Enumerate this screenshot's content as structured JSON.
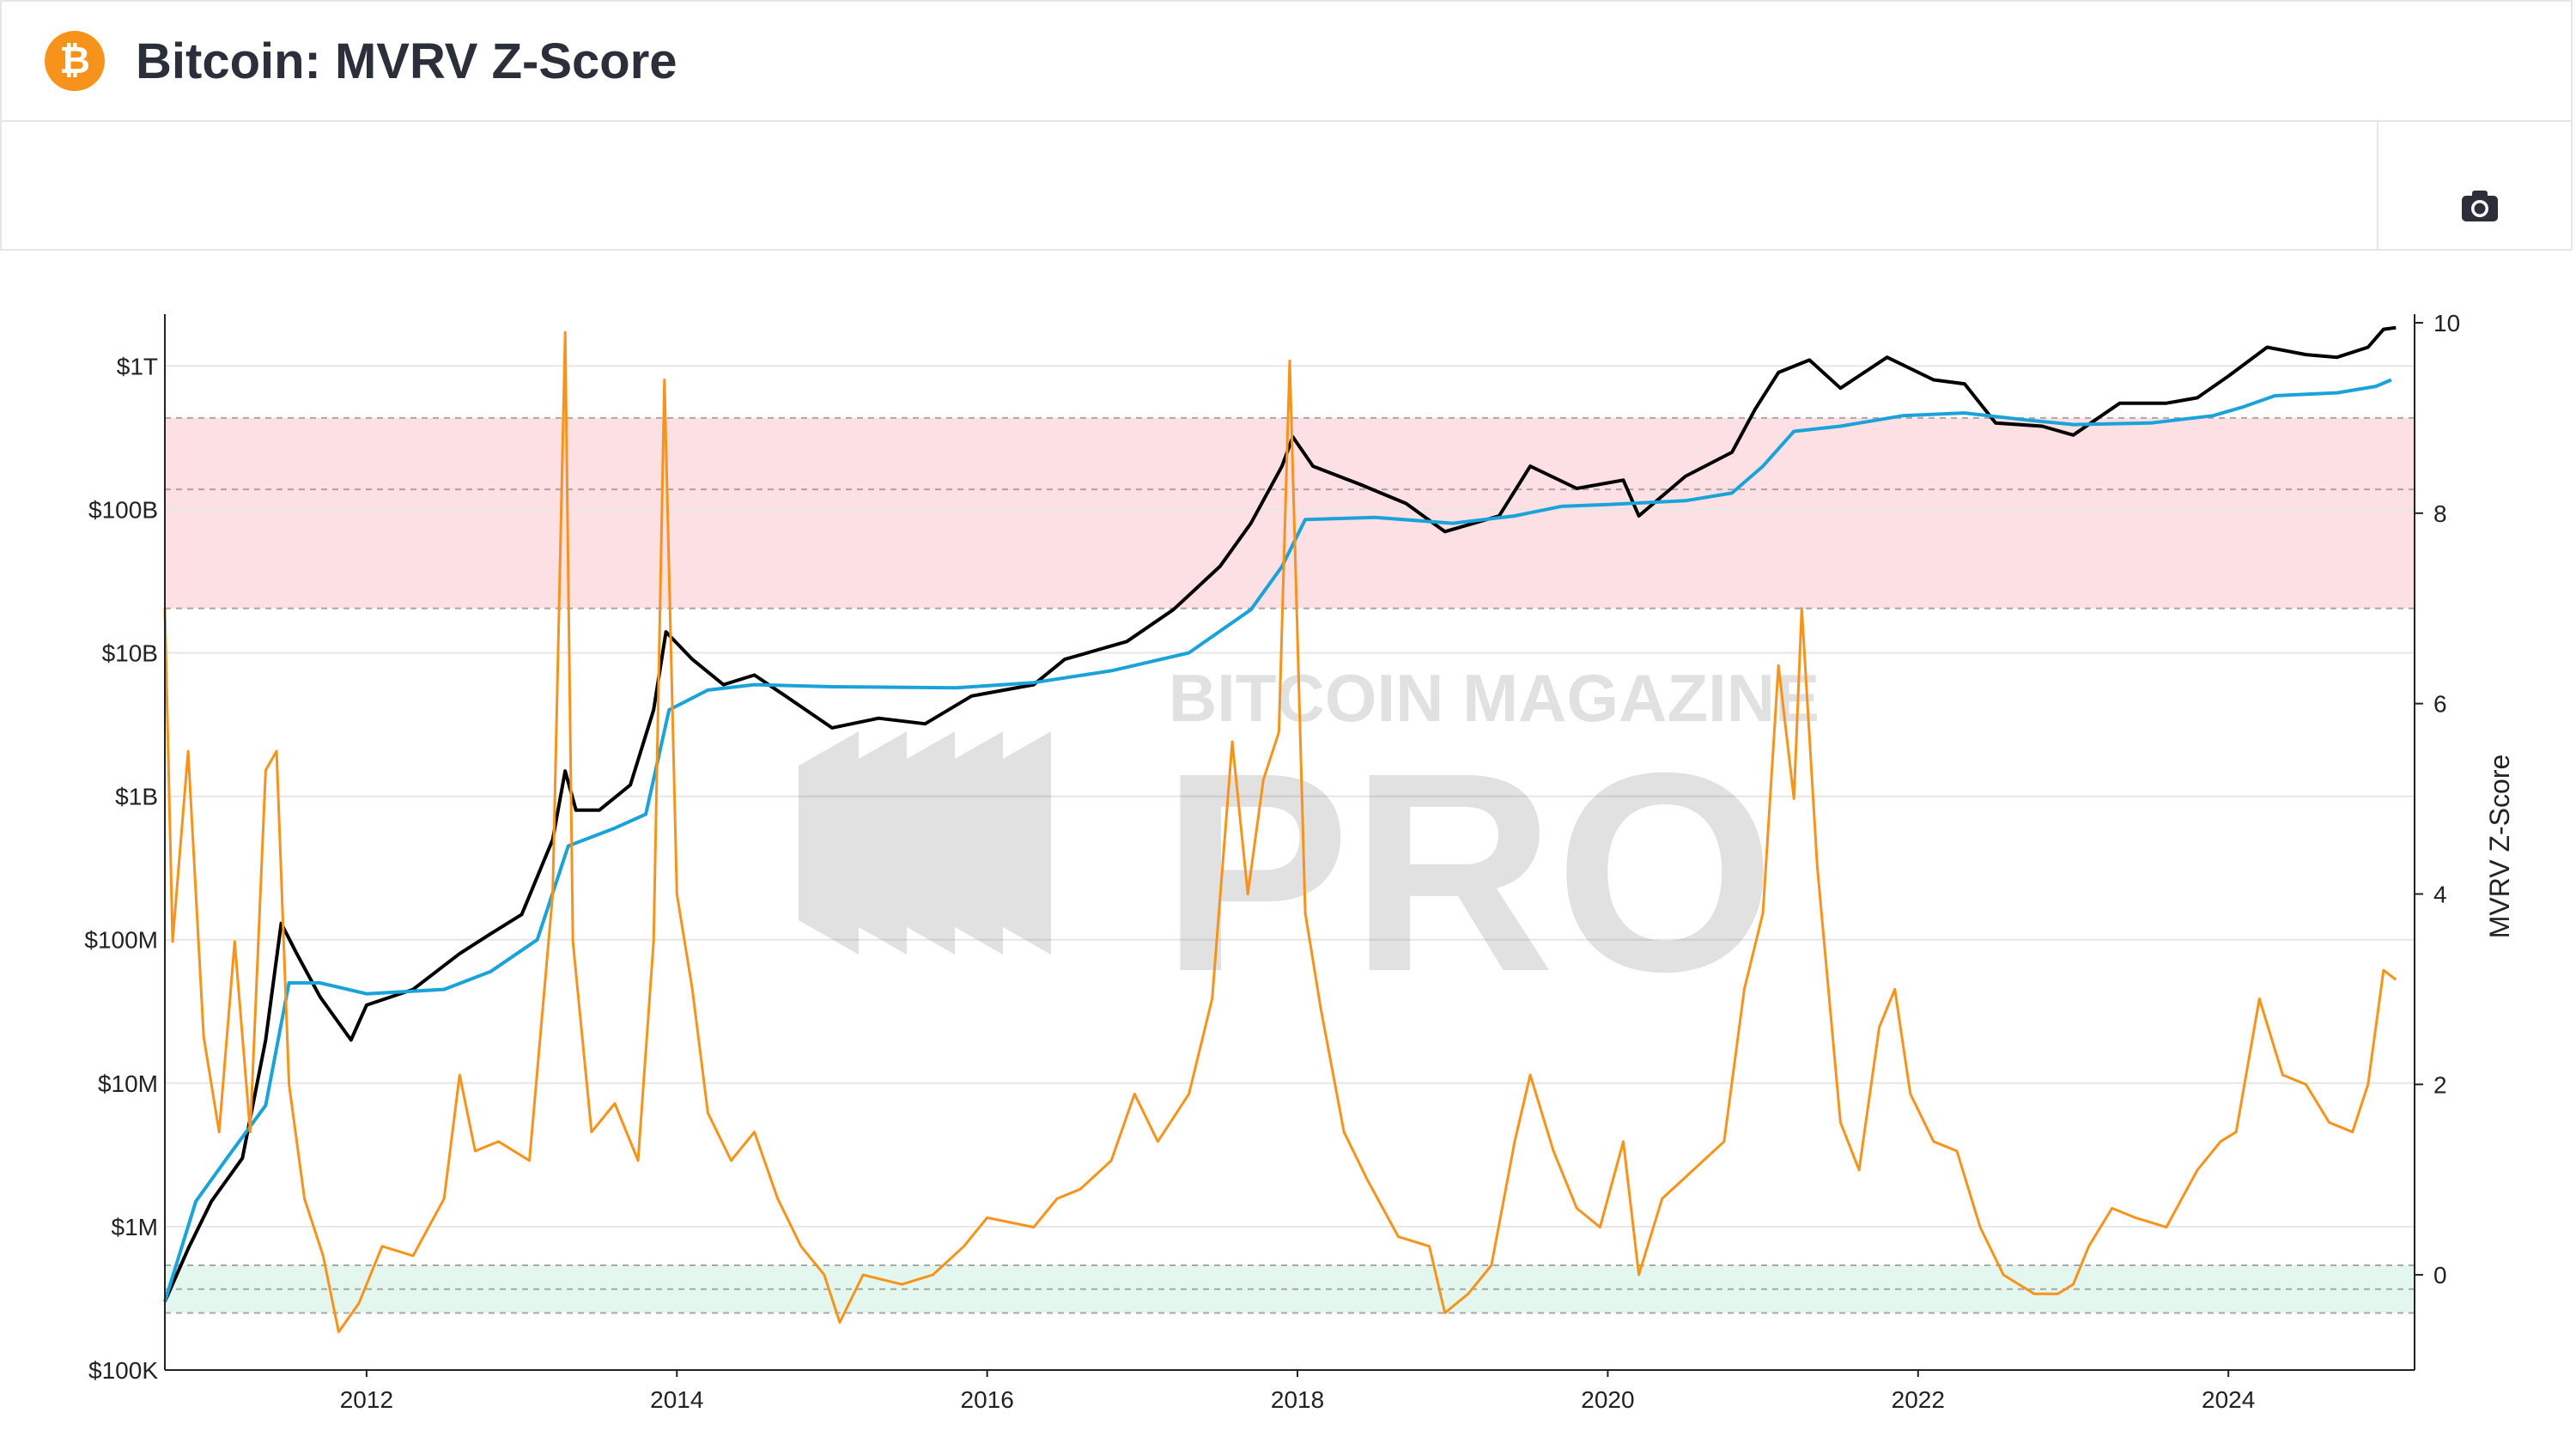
{
  "header": {
    "title": "Bitcoin: MVRV Z-Score",
    "logo_icon": "bitcoin-icon"
  },
  "toolbar": {
    "camera_icon": "camera-icon"
  },
  "colors": {
    "price": "#000000",
    "realized": "#1aa3d9",
    "zscore": "#f7931a",
    "overvalued_zone": "#fde0e3",
    "undervalued_zone": "#e3f7ee"
  },
  "watermark": {
    "line1": "BITCOIN MAGAZINE",
    "line2": "PRO"
  },
  "chart_data": {
    "type": "line",
    "title": "Bitcoin: MVRV Z-Score",
    "y_left": {
      "scale": "log",
      "range": [
        100000,
        2000000000000
      ],
      "ticks": [
        {
          "value": 100000,
          "label": "$100K"
        },
        {
          "value": 1000000,
          "label": "$1M"
        },
        {
          "value": 10000000,
          "label": "$10M"
        },
        {
          "value": 100000000,
          "label": "$100M"
        },
        {
          "value": 1000000000,
          "label": "$1B"
        },
        {
          "value": 10000000000,
          "label": "$10B"
        },
        {
          "value": 100000000000,
          "label": "$100B"
        },
        {
          "value": 1000000000000,
          "label": "$1T"
        }
      ]
    },
    "y_right": {
      "label": "MVRV Z-Score",
      "range": [
        -1,
        10
      ],
      "ticks": [
        0,
        2,
        4,
        6,
        8,
        10
      ]
    },
    "x": {
      "range": [
        2010.7,
        2025.2
      ],
      "ticks": [
        2012,
        2014,
        2016,
        2018,
        2020,
        2022,
        2024
      ]
    },
    "zones": [
      {
        "name": "overvalued",
        "from": 7,
        "to": 9,
        "mid_dashed": 8.25
      },
      {
        "name": "undervalued",
        "from": -0.4,
        "to": 0.1,
        "mid_dashed": -0.15
      }
    ],
    "series": [
      {
        "key": "price",
        "axis": "left",
        "points": [
          [
            2010.7,
            300000
          ],
          [
            2010.85,
            700000
          ],
          [
            2011.0,
            1500000
          ],
          [
            2011.2,
            3000000
          ],
          [
            2011.35,
            20000000
          ],
          [
            2011.45,
            130000000
          ],
          [
            2011.55,
            80000000
          ],
          [
            2011.7,
            40000000
          ],
          [
            2011.9,
            20000000
          ],
          [
            2012.0,
            35000000
          ],
          [
            2012.3,
            45000000
          ],
          [
            2012.6,
            80000000
          ],
          [
            2012.8,
            110000000
          ],
          [
            2013.0,
            150000000
          ],
          [
            2013.2,
            500000000
          ],
          [
            2013.28,
            1500000000
          ],
          [
            2013.35,
            800000000
          ],
          [
            2013.5,
            800000000
          ],
          [
            2013.7,
            1200000000
          ],
          [
            2013.85,
            4000000000
          ],
          [
            2013.93,
            14000000000
          ],
          [
            2014.1,
            9000000000
          ],
          [
            2014.3,
            6000000000
          ],
          [
            2014.5,
            7000000000
          ],
          [
            2014.7,
            5000000000
          ],
          [
            2015.0,
            3000000000
          ],
          [
            2015.3,
            3500000000
          ],
          [
            2015.6,
            3200000000
          ],
          [
            2015.9,
            5000000000
          ],
          [
            2016.3,
            6000000000
          ],
          [
            2016.5,
            9000000000
          ],
          [
            2016.9,
            12000000000
          ],
          [
            2017.2,
            20000000000
          ],
          [
            2017.5,
            40000000000
          ],
          [
            2017.7,
            80000000000
          ],
          [
            2017.9,
            200000000000
          ],
          [
            2017.97,
            320000000000
          ],
          [
            2018.1,
            200000000000
          ],
          [
            2018.4,
            150000000000
          ],
          [
            2018.7,
            110000000000
          ],
          [
            2018.95,
            70000000000
          ],
          [
            2019.3,
            90000000000
          ],
          [
            2019.5,
            200000000000
          ],
          [
            2019.8,
            140000000000
          ],
          [
            2020.1,
            160000000000
          ],
          [
            2020.2,
            90000000000
          ],
          [
            2020.5,
            170000000000
          ],
          [
            2020.8,
            250000000000
          ],
          [
            2020.95,
            500000000000
          ],
          [
            2021.1,
            900000000000
          ],
          [
            2021.3,
            1100000000000
          ],
          [
            2021.5,
            700000000000
          ],
          [
            2021.8,
            1150000000000
          ],
          [
            2022.1,
            800000000000
          ],
          [
            2022.3,
            750000000000
          ],
          [
            2022.5,
            400000000000
          ],
          [
            2022.8,
            380000000000
          ],
          [
            2023.0,
            330000000000
          ],
          [
            2023.3,
            550000000000
          ],
          [
            2023.6,
            550000000000
          ],
          [
            2023.8,
            600000000000
          ],
          [
            2024.0,
            850000000000
          ],
          [
            2024.25,
            1350000000000
          ],
          [
            2024.5,
            1200000000000
          ],
          [
            2024.7,
            1150000000000
          ],
          [
            2024.9,
            1350000000000
          ],
          [
            2025.0,
            1800000000000
          ],
          [
            2025.08,
            1850000000000
          ]
        ]
      },
      {
        "key": "realized",
        "axis": "left",
        "points": [
          [
            2010.7,
            300000
          ],
          [
            2010.9,
            1500000
          ],
          [
            2011.1,
            3000000
          ],
          [
            2011.35,
            7000000
          ],
          [
            2011.5,
            50000000
          ],
          [
            2011.7,
            50000000
          ],
          [
            2012.0,
            42000000
          ],
          [
            2012.5,
            45000000
          ],
          [
            2012.8,
            60000000
          ],
          [
            2013.1,
            100000000
          ],
          [
            2013.3,
            450000000
          ],
          [
            2013.6,
            600000000
          ],
          [
            2013.8,
            750000000
          ],
          [
            2013.95,
            4000000000
          ],
          [
            2014.2,
            5500000000
          ],
          [
            2014.5,
            6000000000
          ],
          [
            2015.0,
            5800000000
          ],
          [
            2015.8,
            5700000000
          ],
          [
            2016.3,
            6200000000
          ],
          [
            2016.8,
            7500000000
          ],
          [
            2017.3,
            10000000000
          ],
          [
            2017.7,
            20000000000
          ],
          [
            2017.9,
            40000000000
          ],
          [
            2018.05,
            85000000000
          ],
          [
            2018.5,
            88000000000
          ],
          [
            2019.0,
            80000000000
          ],
          [
            2019.4,
            90000000000
          ],
          [
            2019.7,
            105000000000
          ],
          [
            2020.0,
            108000000000
          ],
          [
            2020.5,
            115000000000
          ],
          [
            2020.8,
            130000000000
          ],
          [
            2021.0,
            200000000000
          ],
          [
            2021.2,
            350000000000
          ],
          [
            2021.5,
            380000000000
          ],
          [
            2021.9,
            450000000000
          ],
          [
            2022.3,
            470000000000
          ],
          [
            2022.7,
            420000000000
          ],
          [
            2023.0,
            390000000000
          ],
          [
            2023.5,
            400000000000
          ],
          [
            2023.9,
            450000000000
          ],
          [
            2024.1,
            520000000000
          ],
          [
            2024.3,
            620000000000
          ],
          [
            2024.7,
            650000000000
          ],
          [
            2024.95,
            720000000000
          ],
          [
            2025.05,
            800000000000
          ]
        ]
      },
      {
        "key": "zscore",
        "axis": "right",
        "points": [
          [
            2010.7,
            7.0
          ],
          [
            2010.75,
            3.5
          ],
          [
            2010.85,
            5.5
          ],
          [
            2010.95,
            2.5
          ],
          [
            2011.05,
            1.5
          ],
          [
            2011.15,
            3.5
          ],
          [
            2011.25,
            1.5
          ],
          [
            2011.35,
            5.3
          ],
          [
            2011.42,
            5.5
          ],
          [
            2011.5,
            2.0
          ],
          [
            2011.6,
            0.8
          ],
          [
            2011.72,
            0.2
          ],
          [
            2011.82,
            -0.6
          ],
          [
            2011.95,
            -0.3
          ],
          [
            2012.1,
            0.3
          ],
          [
            2012.3,
            0.2
          ],
          [
            2012.5,
            0.8
          ],
          [
            2012.6,
            2.1
          ],
          [
            2012.7,
            1.3
          ],
          [
            2012.85,
            1.4
          ],
          [
            2013.05,
            1.2
          ],
          [
            2013.2,
            4.0
          ],
          [
            2013.28,
            9.9
          ],
          [
            2013.33,
            3.5
          ],
          [
            2013.45,
            1.5
          ],
          [
            2013.6,
            1.8
          ],
          [
            2013.75,
            1.2
          ],
          [
            2013.85,
            3.5
          ],
          [
            2013.92,
            9.4
          ],
          [
            2014.0,
            4.0
          ],
          [
            2014.1,
            3.0
          ],
          [
            2014.2,
            1.7
          ],
          [
            2014.35,
            1.2
          ],
          [
            2014.5,
            1.5
          ],
          [
            2014.65,
            0.8
          ],
          [
            2014.8,
            0.3
          ],
          [
            2014.95,
            0.0
          ],
          [
            2015.05,
            -0.5
          ],
          [
            2015.2,
            0.0
          ],
          [
            2015.45,
            -0.1
          ],
          [
            2015.65,
            0.0
          ],
          [
            2015.85,
            0.3
          ],
          [
            2016.0,
            0.6
          ],
          [
            2016.3,
            0.5
          ],
          [
            2016.45,
            0.8
          ],
          [
            2016.6,
            0.9
          ],
          [
            2016.8,
            1.2
          ],
          [
            2016.95,
            1.9
          ],
          [
            2017.1,
            1.4
          ],
          [
            2017.3,
            1.9
          ],
          [
            2017.45,
            2.9
          ],
          [
            2017.58,
            5.6
          ],
          [
            2017.68,
            4.0
          ],
          [
            2017.78,
            5.2
          ],
          [
            2017.88,
            5.7
          ],
          [
            2017.95,
            9.6
          ],
          [
            2018.05,
            3.8
          ],
          [
            2018.15,
            2.8
          ],
          [
            2018.3,
            1.5
          ],
          [
            2018.45,
            1.0
          ],
          [
            2018.65,
            0.4
          ],
          [
            2018.85,
            0.3
          ],
          [
            2018.95,
            -0.4
          ],
          [
            2019.1,
            -0.2
          ],
          [
            2019.25,
            0.1
          ],
          [
            2019.4,
            1.4
          ],
          [
            2019.5,
            2.1
          ],
          [
            2019.65,
            1.3
          ],
          [
            2019.8,
            0.7
          ],
          [
            2019.95,
            0.5
          ],
          [
            2020.1,
            1.4
          ],
          [
            2020.2,
            0.0
          ],
          [
            2020.35,
            0.8
          ],
          [
            2020.55,
            1.1
          ],
          [
            2020.75,
            1.4
          ],
          [
            2020.88,
            3.0
          ],
          [
            2021.0,
            3.8
          ],
          [
            2021.1,
            6.4
          ],
          [
            2021.2,
            5.0
          ],
          [
            2021.25,
            7.0
          ],
          [
            2021.35,
            4.3
          ],
          [
            2021.5,
            1.6
          ],
          [
            2021.62,
            1.1
          ],
          [
            2021.75,
            2.6
          ],
          [
            2021.85,
            3.0
          ],
          [
            2021.95,
            1.9
          ],
          [
            2022.1,
            1.4
          ],
          [
            2022.25,
            1.3
          ],
          [
            2022.4,
            0.5
          ],
          [
            2022.55,
            0.0
          ],
          [
            2022.75,
            -0.2
          ],
          [
            2022.9,
            -0.2
          ],
          [
            2023.0,
            -0.1
          ],
          [
            2023.1,
            0.3
          ],
          [
            2023.25,
            0.7
          ],
          [
            2023.4,
            0.6
          ],
          [
            2023.6,
            0.5
          ],
          [
            2023.8,
            1.1
          ],
          [
            2023.95,
            1.4
          ],
          [
            2024.05,
            1.5
          ],
          [
            2024.2,
            2.9
          ],
          [
            2024.35,
            2.1
          ],
          [
            2024.5,
            2.0
          ],
          [
            2024.65,
            1.6
          ],
          [
            2024.8,
            1.5
          ],
          [
            2024.9,
            2.0
          ],
          [
            2025.0,
            3.2
          ],
          [
            2025.08,
            3.1
          ]
        ]
      }
    ]
  }
}
